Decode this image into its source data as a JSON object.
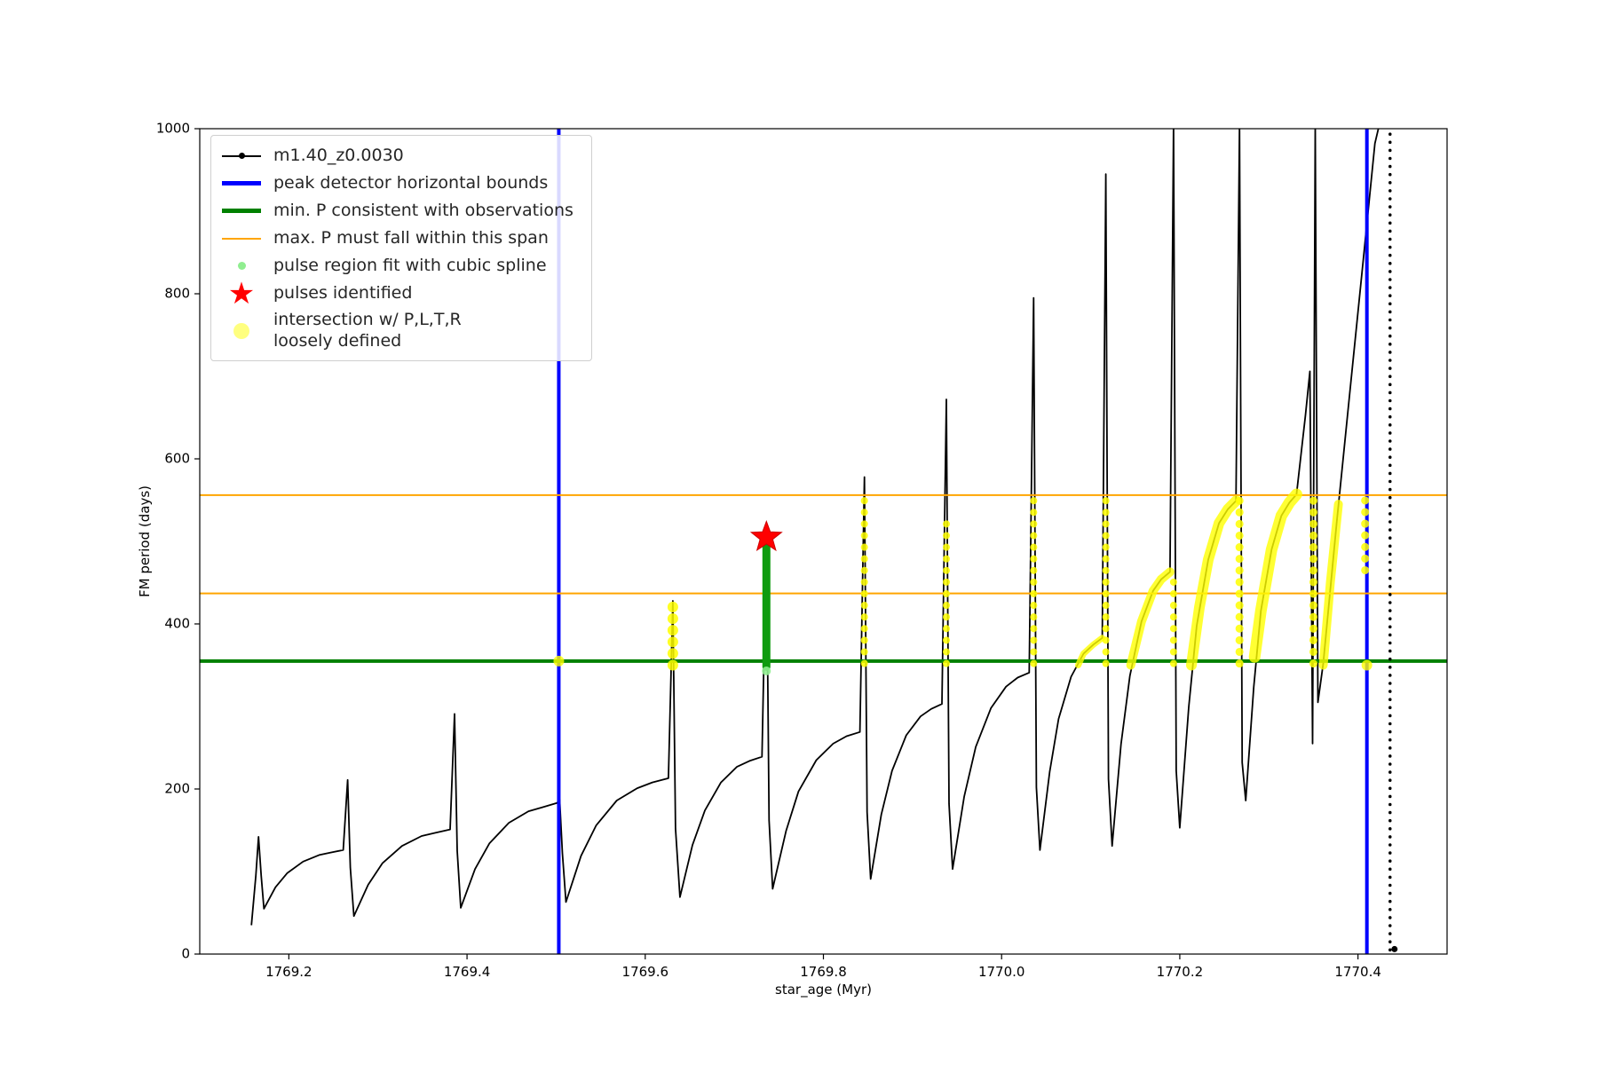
{
  "figure": {
    "background": "#ffffff"
  },
  "legend": {
    "entries": [
      {
        "name": "series-line",
        "icon": "black-line-dot-icon",
        "marker": "line-dot",
        "color": "#000000",
        "label": "m1.40_z0.0030"
      },
      {
        "name": "peak-detector-bounds",
        "icon": "blue-line-icon",
        "marker": "thick-line",
        "color": "#0000ff",
        "label": "peak detector horizontal bounds"
      },
      {
        "name": "min-period-line",
        "icon": "green-line-icon",
        "marker": "thick-line",
        "color": "#008000",
        "label": "min. P consistent with observations"
      },
      {
        "name": "max-period-span",
        "icon": "orange-line-icon",
        "marker": "line",
        "color": "#ffa500",
        "label": "max. P must fall within this span"
      },
      {
        "name": "pulse-region-fit",
        "icon": "light-green-dot-icon",
        "marker": "dot-small",
        "color": "#90ee90",
        "label": "pulse region fit with cubic spline"
      },
      {
        "name": "pulses-identified",
        "icon": "red-star-icon",
        "marker": "star",
        "color": "#ff0000",
        "label": "pulses identified"
      },
      {
        "name": "intersection-region",
        "icon": "yellow-dot-icon",
        "marker": "dot-large",
        "color": "#ffff00",
        "label": "intersection w/ P,L,T,R\nloosely defined"
      }
    ]
  },
  "chart_data": {
    "type": "line",
    "title": "",
    "xlabel": "star_age (Myr)",
    "ylabel": "FM period (days)",
    "xlim": [
      1769.1,
      1770.5
    ],
    "ylim": [
      0,
      1000
    ],
    "grid": false,
    "legend_position": "upper left",
    "xticks": [
      1769.2,
      1769.4,
      1769.6,
      1769.8,
      1770.0,
      1770.2,
      1770.4
    ],
    "xtick_labels": [
      "1769.2",
      "1769.4",
      "1769.6",
      "1769.8",
      "1770.0",
      "1770.2",
      "1770.4"
    ],
    "yticks": [
      0,
      200,
      400,
      600,
      800,
      1000
    ],
    "ytick_labels": [
      "0",
      "200",
      "400",
      "600",
      "800",
      "1000"
    ],
    "series": [
      {
        "name": "m1.40_z0.0030",
        "color": "#000000",
        "style": "line-with-dot-markers",
        "points": [
          [
            1769.158,
            35
          ],
          [
            1769.163,
            95
          ],
          [
            1769.166,
            142
          ],
          [
            1769.169,
            95
          ],
          [
            1769.172,
            55
          ],
          [
            1769.185,
            81
          ],
          [
            1769.198,
            98
          ],
          [
            1769.216,
            112
          ],
          [
            1769.234,
            120
          ],
          [
            1769.247,
            123
          ],
          [
            1769.261,
            126
          ],
          [
            1769.266,
            211
          ],
          [
            1769.269,
            105
          ],
          [
            1769.273,
            46
          ],
          [
            1769.289,
            84
          ],
          [
            1769.305,
            110
          ],
          [
            1769.327,
            131
          ],
          [
            1769.349,
            143
          ],
          [
            1769.365,
            147
          ],
          [
            1769.381,
            151
          ],
          [
            1769.386,
            291
          ],
          [
            1769.389,
            125
          ],
          [
            1769.393,
            56
          ],
          [
            1769.409,
            103
          ],
          [
            1769.425,
            134
          ],
          [
            1769.447,
            159
          ],
          [
            1769.469,
            173
          ],
          [
            1769.485,
            178
          ],
          [
            1769.501,
            183
          ],
          [
            1769.504,
            187
          ],
          [
            1769.507,
            122
          ],
          [
            1769.511,
            63
          ],
          [
            1769.528,
            119
          ],
          [
            1769.545,
            156
          ],
          [
            1769.568,
            186
          ],
          [
            1769.591,
            201
          ],
          [
            1769.608,
            208
          ],
          [
            1769.626,
            213
          ],
          [
            1769.631,
            428
          ],
          [
            1769.634,
            152
          ],
          [
            1769.639,
            69
          ],
          [
            1769.653,
            132
          ],
          [
            1769.667,
            174
          ],
          [
            1769.685,
            208
          ],
          [
            1769.703,
            227
          ],
          [
            1769.717,
            234
          ],
          [
            1769.731,
            239
          ],
          [
            1769.736,
            510
          ],
          [
            1769.739,
            162
          ],
          [
            1769.743,
            79
          ],
          [
            1769.758,
            149
          ],
          [
            1769.772,
            197
          ],
          [
            1769.792,
            235
          ],
          [
            1769.811,
            255
          ],
          [
            1769.826,
            264
          ],
          [
            1769.841,
            269
          ],
          [
            1769.846,
            578
          ],
          [
            1769.849,
            172
          ],
          [
            1769.853,
            91
          ],
          [
            1769.865,
            169
          ],
          [
            1769.877,
            222
          ],
          [
            1769.893,
            265
          ],
          [
            1769.909,
            288
          ],
          [
            1769.921,
            297
          ],
          [
            1769.933,
            303
          ],
          [
            1769.938,
            672
          ],
          [
            1769.941,
            182
          ],
          [
            1769.945,
            103
          ],
          [
            1769.958,
            191
          ],
          [
            1769.971,
            251
          ],
          [
            1769.988,
            298
          ],
          [
            1770.005,
            324
          ],
          [
            1770.018,
            335
          ],
          [
            1770.031,
            341
          ],
          [
            1770.036,
            795
          ],
          [
            1770.039,
            202
          ],
          [
            1770.043,
            126
          ],
          [
            1770.054,
            221
          ],
          [
            1770.064,
            285
          ],
          [
            1770.078,
            336
          ],
          [
            1770.092,
            364
          ],
          [
            1770.103,
            375
          ],
          [
            1770.113,
            383
          ],
          [
            1770.117,
            945
          ],
          [
            1770.12,
            212
          ],
          [
            1770.124,
            131
          ],
          [
            1770.134,
            254
          ],
          [
            1770.144,
            337
          ],
          [
            1770.157,
            403
          ],
          [
            1770.17,
            440
          ],
          [
            1770.179,
            454
          ],
          [
            1770.189,
            463
          ],
          [
            1770.193,
            1005
          ],
          [
            1770.196,
            222
          ],
          [
            1770.2,
            153
          ],
          [
            1770.21,
            299
          ],
          [
            1770.219,
            398
          ],
          [
            1770.232,
            478
          ],
          [
            1770.244,
            522
          ],
          [
            1770.254,
            539
          ],
          [
            1770.263,
            549
          ],
          [
            1770.267,
            1005
          ],
          [
            1770.27,
            232
          ],
          [
            1770.274,
            186
          ],
          [
            1770.283,
            323
          ],
          [
            1770.291,
            416
          ],
          [
            1770.303,
            490
          ],
          [
            1770.314,
            531
          ],
          [
            1770.323,
            547
          ],
          [
            1770.331,
            557
          ],
          [
            1770.341,
            652
          ],
          [
            1770.346,
            706
          ],
          [
            1770.349,
            255
          ],
          [
            1770.352,
            1005
          ],
          [
            1770.355,
            305
          ],
          [
            1770.361,
            352
          ],
          [
            1770.376,
            522
          ],
          [
            1770.391,
            682
          ],
          [
            1770.406,
            842
          ],
          [
            1770.419,
            982
          ],
          [
            1770.424,
            1005
          ]
        ]
      }
    ],
    "annotations": {
      "colors": {
        "blue": "#0000ff",
        "green": "#008000",
        "orange": "#ffa500",
        "yellow": "#ffff00",
        "light_green": "#90ee90",
        "red": "#ff0000",
        "black": "#000000"
      },
      "blue_vlines": [
        1769.503,
        1770.41
      ],
      "green_hline": 355,
      "orange_hlines": [
        437,
        556
      ],
      "star": {
        "x": 1769.736,
        "y": 505
      },
      "green_column": {
        "x": 1769.736,
        "y0": 348,
        "y1": 500,
        "w": 9
      },
      "green_dots": [
        [
          1769.736,
          343
        ],
        [
          1769.734,
          501
        ]
      ],
      "yellow_columns": [
        {
          "x": 1769.631,
          "y0": 350,
          "y1": 428,
          "w": 12
        },
        {
          "x": 1769.846,
          "y0": 352,
          "y1": 556,
          "w": 8
        },
        {
          "x": 1769.938,
          "y0": 352,
          "y1": 522,
          "w": 8
        },
        {
          "x": 1770.036,
          "y0": 352,
          "y1": 556,
          "w": 8
        },
        {
          "x": 1770.117,
          "y0": 352,
          "y1": 556,
          "w": 8
        },
        {
          "x": 1770.193,
          "y0": 352,
          "y1": 462,
          "w": 8
        },
        {
          "x": 1770.267,
          "y0": 352,
          "y1": 556,
          "w": 9
        },
        {
          "x": 1770.35,
          "y0": 352,
          "y1": 556,
          "w": 9
        },
        {
          "x": 1770.408,
          "y0": 465,
          "y1": 556,
          "w": 9
        }
      ],
      "yellow_arcs": [
        [
          [
            1770.086,
            350
          ],
          [
            1770.092,
            364
          ],
          [
            1770.103,
            375
          ],
          [
            1770.113,
            383
          ]
        ],
        [
          [
            1770.145,
            350
          ],
          [
            1770.157,
            403
          ],
          [
            1770.17,
            440
          ],
          [
            1770.179,
            454
          ],
          [
            1770.189,
            463
          ]
        ],
        [
          [
            1770.213,
            350
          ],
          [
            1770.222,
            420
          ],
          [
            1770.232,
            478
          ],
          [
            1770.244,
            522
          ],
          [
            1770.254,
            539
          ],
          [
            1770.263,
            549
          ]
        ],
        [
          [
            1770.284,
            360
          ],
          [
            1770.291,
            416
          ],
          [
            1770.303,
            490
          ],
          [
            1770.314,
            531
          ],
          [
            1770.323,
            547
          ],
          [
            1770.331,
            557
          ]
        ],
        [
          [
            1770.361,
            350
          ],
          [
            1770.369,
            450
          ],
          [
            1770.378,
            545
          ]
        ]
      ],
      "yellow_arc_widths": [
        7,
        10,
        12,
        13,
        10
      ],
      "yellow_dots": [
        [
          1769.503,
          355
        ],
        [
          1770.41,
          350
        ]
      ],
      "dotted_vline": {
        "x": 1770.436,
        "y0": 5,
        "y1": 1000
      },
      "black_dots": [
        [
          1770.441,
          6
        ]
      ]
    }
  }
}
